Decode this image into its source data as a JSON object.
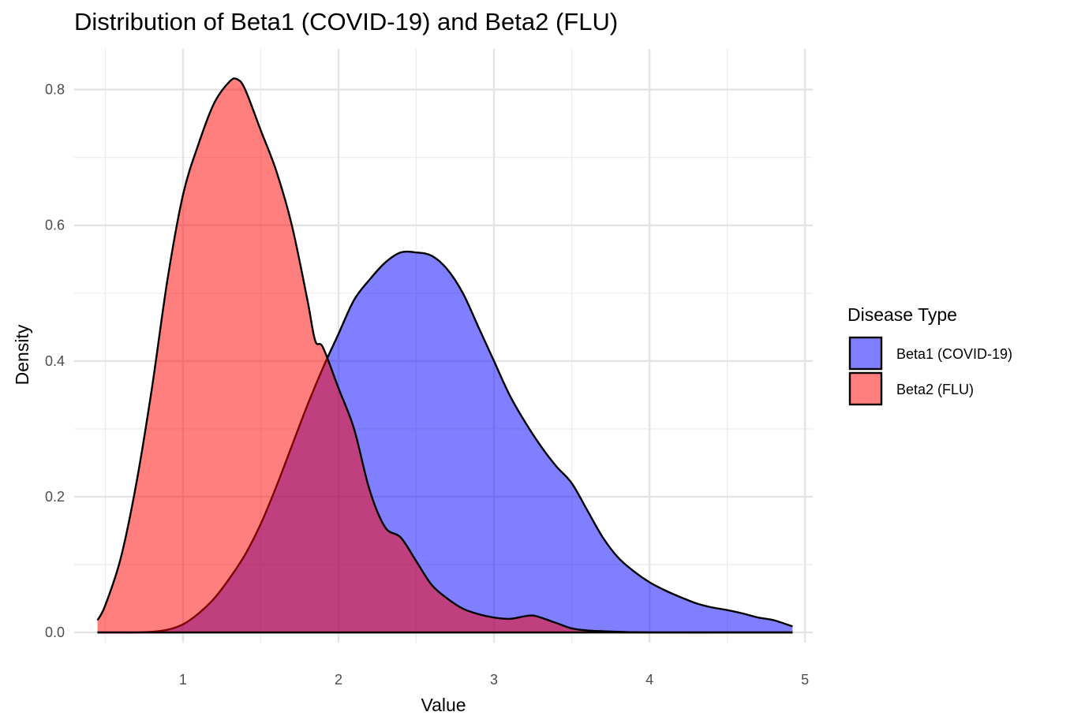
{
  "chart_data": {
    "type": "area",
    "title": "Distribution of Beta1 (COVID-19) and Beta2 (FLU)",
    "xlabel": "Value",
    "ylabel": "Density",
    "xlim": [
      0.3,
      5.05
    ],
    "ylim": [
      -0.015,
      0.86
    ],
    "x_ticks": [
      "1",
      "2",
      "3",
      "4",
      "5"
    ],
    "y_ticks": [
      "0.0",
      "0.2",
      "0.4",
      "0.6",
      "0.8"
    ],
    "grid": true,
    "legend": {
      "title": "Disease Type",
      "position": "right"
    },
    "series": [
      {
        "name": "Beta1 (COVID-19)",
        "color": "#0000ff",
        "fill_opacity": 0.5,
        "x": [
          0.45,
          0.6,
          0.7,
          0.8,
          0.9,
          1.0,
          1.1,
          1.2,
          1.3,
          1.4,
          1.5,
          1.6,
          1.7,
          1.8,
          1.9,
          2.0,
          2.1,
          2.2,
          2.3,
          2.4,
          2.5,
          2.6,
          2.7,
          2.8,
          2.9,
          3.0,
          3.1,
          3.2,
          3.3,
          3.4,
          3.5,
          3.6,
          3.7,
          3.8,
          3.9,
          4.0,
          4.1,
          4.2,
          4.3,
          4.4,
          4.5,
          4.6,
          4.7,
          4.8,
          4.92
        ],
        "y": [
          0.0,
          0.0,
          0.0,
          0.001,
          0.004,
          0.012,
          0.028,
          0.05,
          0.08,
          0.115,
          0.16,
          0.215,
          0.275,
          0.335,
          0.39,
          0.44,
          0.49,
          0.52,
          0.545,
          0.56,
          0.56,
          0.555,
          0.535,
          0.5,
          0.45,
          0.4,
          0.35,
          0.31,
          0.275,
          0.245,
          0.22,
          0.18,
          0.14,
          0.11,
          0.09,
          0.074,
          0.062,
          0.052,
          0.043,
          0.037,
          0.033,
          0.028,
          0.022,
          0.018,
          0.009
        ]
      },
      {
        "name": "Beta2 (FLU)",
        "color": "#ff0000",
        "fill_opacity": 0.5,
        "x": [
          0.45,
          0.5,
          0.6,
          0.7,
          0.8,
          0.9,
          1.0,
          1.1,
          1.2,
          1.3,
          1.35,
          1.4,
          1.5,
          1.6,
          1.7,
          1.8,
          1.85,
          1.9,
          2.0,
          2.1,
          2.2,
          2.3,
          2.4,
          2.5,
          2.6,
          2.7,
          2.8,
          2.9,
          3.0,
          3.1,
          3.2,
          3.25,
          3.3,
          3.4,
          3.5,
          3.6,
          3.8,
          4.0,
          4.5,
          4.92
        ],
        "y": [
          0.018,
          0.04,
          0.11,
          0.22,
          0.36,
          0.52,
          0.645,
          0.72,
          0.78,
          0.812,
          0.815,
          0.8,
          0.74,
          0.68,
          0.6,
          0.49,
          0.43,
          0.42,
          0.36,
          0.3,
          0.21,
          0.155,
          0.14,
          0.105,
          0.07,
          0.05,
          0.035,
          0.027,
          0.022,
          0.02,
          0.024,
          0.025,
          0.022,
          0.014,
          0.006,
          0.003,
          0.001,
          0.0,
          0.0,
          0.0
        ]
      }
    ]
  }
}
